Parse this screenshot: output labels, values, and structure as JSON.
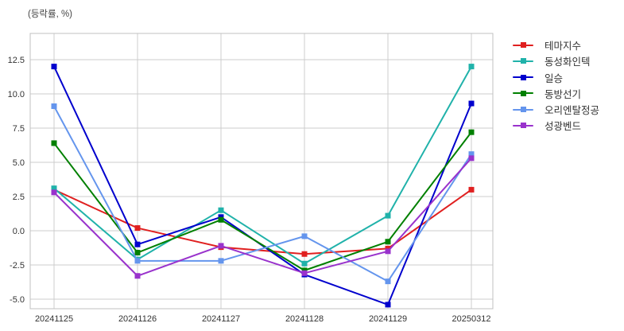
{
  "title": "(등락률, %)",
  "chart_data": {
    "type": "line",
    "title": "(등락률, %)",
    "xlabel": "",
    "ylabel": "등락률 (%)",
    "categories": [
      "20241125",
      "20241126",
      "20241127",
      "20241128",
      "20241129",
      "20250312"
    ],
    "series": [
      {
        "name": "테마지수",
        "color": "#e02020",
        "values": [
          3.0,
          0.2,
          -1.2,
          -1.7,
          -1.3,
          3.0
        ]
      },
      {
        "name": "동성화인텍",
        "color": "#20b2aa",
        "values": [
          3.1,
          -2.1,
          1.5,
          -2.4,
          1.1,
          12.0
        ]
      },
      {
        "name": "일승",
        "color": "#0000cd",
        "values": [
          12.0,
          -1.0,
          1.0,
          -3.2,
          -5.4,
          9.3
        ]
      },
      {
        "name": "동방선기",
        "color": "#008000",
        "values": [
          6.4,
          -1.6,
          0.8,
          -2.9,
          -0.8,
          7.2
        ]
      },
      {
        "name": "오리엔탈정공",
        "color": "#6495ed",
        "values": [
          9.1,
          -2.2,
          -2.2,
          -0.4,
          -3.7,
          5.6
        ]
      },
      {
        "name": "성광벤드",
        "color": "#9932cc",
        "values": [
          2.8,
          -3.3,
          -1.1,
          -3.1,
          -1.5,
          5.3
        ]
      }
    ],
    "yticks": [
      12.5,
      10.0,
      7.5,
      5.0,
      2.5,
      0.0,
      -2.5,
      -5.0
    ],
    "ylim": [
      -5.7,
      14.4
    ],
    "grid": true,
    "legend_position": "right"
  },
  "style": {
    "grid_color": "#cccccc",
    "border_color": "#c0c0c0",
    "tick_color": "#333333",
    "title_color": "#444444",
    "background": "#ffffff"
  }
}
